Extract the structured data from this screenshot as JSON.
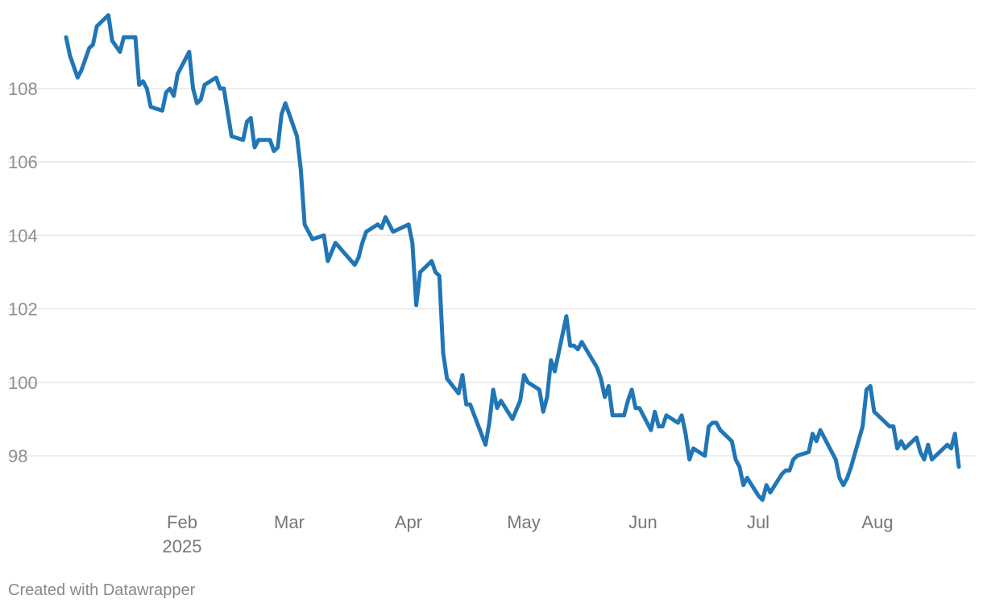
{
  "chart_data": {
    "type": "line",
    "title": "",
    "xlabel": "",
    "ylabel": "",
    "ylim": [
      96.8,
      110.4
    ],
    "y_ticks": [
      "108",
      "106",
      "104",
      "102",
      "100",
      "98"
    ],
    "x_ticks": [
      {
        "label": "Feb",
        "sub": "2025",
        "date": "2025-02-01"
      },
      {
        "label": "Mar",
        "sub": "",
        "date": "2025-03-01"
      },
      {
        "label": "Apr",
        "sub": "",
        "date": "2025-04-01"
      },
      {
        "label": "May",
        "sub": "",
        "date": "2025-05-01"
      },
      {
        "label": "Jun",
        "sub": "",
        "date": "2025-06-01"
      },
      {
        "label": "Jul",
        "sub": "",
        "date": "2025-07-01"
      },
      {
        "label": "Aug",
        "sub": "",
        "date": "2025-08-01"
      }
    ],
    "x_range": [
      "2025-01-13",
      "2025-08-22"
    ],
    "grid": true,
    "line_color": "#2176b5",
    "series": [
      {
        "points": [
          [
            "2025-01-13",
            109.4
          ],
          [
            "2025-01-14",
            108.9
          ],
          [
            "2025-01-16",
            108.3
          ],
          [
            "2025-01-17",
            108.5
          ],
          [
            "2025-01-19",
            109.1
          ],
          [
            "2025-01-20",
            109.2
          ],
          [
            "2025-01-21",
            109.7
          ],
          [
            "2025-01-24",
            110.0
          ],
          [
            "2025-01-25",
            109.3
          ],
          [
            "2025-01-27",
            109.0
          ],
          [
            "2025-01-28",
            109.4
          ],
          [
            "2025-01-31",
            109.4
          ],
          [
            "2025-02-01",
            108.1
          ],
          [
            "2025-02-02",
            108.2
          ],
          [
            "2025-02-03",
            108.0
          ],
          [
            "2025-02-04",
            107.5
          ],
          [
            "2025-02-07",
            107.4
          ],
          [
            "2025-02-08",
            107.9
          ],
          [
            "2025-02-09",
            108.0
          ],
          [
            "2025-02-10",
            107.8
          ],
          [
            "2025-02-11",
            108.4
          ],
          [
            "2025-02-14",
            109.0
          ],
          [
            "2025-02-15",
            108.0
          ],
          [
            "2025-02-16",
            107.6
          ],
          [
            "2025-02-17",
            107.7
          ],
          [
            "2025-02-18",
            108.1
          ],
          [
            "2025-02-21",
            108.3
          ],
          [
            "2025-02-22",
            108.0
          ],
          [
            "2025-02-23",
            108.0
          ],
          [
            "2025-02-25",
            106.7
          ],
          [
            "2025-02-28",
            106.6
          ],
          [
            "2025-03-01",
            107.1
          ],
          [
            "2025-03-02",
            107.2
          ],
          [
            "2025-03-03",
            106.4
          ],
          [
            "2025-03-04",
            106.6
          ],
          [
            "2025-03-07",
            106.6
          ],
          [
            "2025-03-08",
            106.3
          ],
          [
            "2025-03-09",
            106.4
          ],
          [
            "2025-03-10",
            107.3
          ],
          [
            "2025-03-11",
            107.6
          ],
          [
            "2025-03-14",
            106.7
          ],
          [
            "2025-03-15",
            105.8
          ],
          [
            "2025-03-16",
            104.3
          ],
          [
            "2025-03-18",
            103.9
          ],
          [
            "2025-03-21",
            104.0
          ],
          [
            "2025-03-22",
            103.3
          ],
          [
            "2025-03-24",
            103.8
          ],
          [
            "2025-03-29",
            103.2
          ],
          [
            "2025-03-30",
            103.4
          ],
          [
            "2025-03-31",
            103.8
          ],
          [
            "2025-04-01",
            104.1
          ],
          [
            "2025-04-04",
            104.3
          ],
          [
            "2025-04-05",
            104.2
          ],
          [
            "2025-04-06",
            104.5
          ],
          [
            "2025-04-08",
            104.1
          ],
          [
            "2025-04-12",
            104.3
          ],
          [
            "2025-04-13",
            103.8
          ],
          [
            "2025-04-14",
            102.1
          ],
          [
            "2025-04-15",
            103.0
          ],
          [
            "2025-04-18",
            103.3
          ],
          [
            "2025-04-19",
            103.0
          ],
          [
            "2025-04-20",
            102.9
          ],
          [
            "2025-04-21",
            100.8
          ],
          [
            "2025-04-22",
            100.1
          ],
          [
            "2025-04-25",
            99.7
          ],
          [
            "2025-04-26",
            100.2
          ],
          [
            "2025-04-27",
            99.4
          ],
          [
            "2025-04-28",
            99.4
          ],
          [
            "2025-05-02",
            98.3
          ],
          [
            "2025-05-03",
            98.9
          ],
          [
            "2025-05-04",
            99.8
          ],
          [
            "2025-05-05",
            99.3
          ],
          [
            "2025-05-06",
            99.5
          ],
          [
            "2025-05-09",
            99.0
          ],
          [
            "2025-05-11",
            99.5
          ],
          [
            "2025-05-12",
            100.2
          ],
          [
            "2025-05-13",
            100.0
          ],
          [
            "2025-05-16",
            99.8
          ],
          [
            "2025-05-17",
            99.2
          ],
          [
            "2025-05-18",
            99.6
          ],
          [
            "2025-05-19",
            100.6
          ],
          [
            "2025-05-20",
            100.3
          ],
          [
            "2025-05-23",
            101.8
          ],
          [
            "2025-05-24",
            101.0
          ],
          [
            "2025-05-25",
            101.0
          ],
          [
            "2025-05-26",
            100.9
          ],
          [
            "2025-05-27",
            101.1
          ],
          [
            "2025-05-31",
            100.4
          ],
          [
            "2025-06-01",
            100.1
          ],
          [
            "2025-06-02",
            99.6
          ],
          [
            "2025-06-03",
            99.9
          ],
          [
            "2025-06-04",
            99.1
          ],
          [
            "2025-06-07",
            99.1
          ],
          [
            "2025-06-08",
            99.5
          ],
          [
            "2025-06-09",
            99.8
          ],
          [
            "2025-06-10",
            99.3
          ],
          [
            "2025-06-11",
            99.3
          ],
          [
            "2025-06-14",
            98.7
          ],
          [
            "2025-06-15",
            99.2
          ],
          [
            "2025-06-16",
            98.8
          ],
          [
            "2025-06-17",
            98.8
          ],
          [
            "2025-06-18",
            99.1
          ],
          [
            "2025-06-21",
            98.9
          ],
          [
            "2025-06-22",
            99.1
          ],
          [
            "2025-06-23",
            98.6
          ],
          [
            "2025-06-24",
            97.9
          ],
          [
            "2025-06-25",
            98.2
          ],
          [
            "2025-06-28",
            98.0
          ],
          [
            "2025-06-29",
            98.8
          ],
          [
            "2025-06-30",
            98.9
          ],
          [
            "2025-07-01",
            98.9
          ],
          [
            "2025-07-02",
            98.7
          ],
          [
            "2025-07-05",
            98.4
          ],
          [
            "2025-07-06",
            97.9
          ],
          [
            "2025-07-07",
            97.7
          ],
          [
            "2025-07-08",
            97.2
          ],
          [
            "2025-07-09",
            97.4
          ],
          [
            "2025-07-12",
            96.9
          ],
          [
            "2025-07-13",
            96.8
          ],
          [
            "2025-07-14",
            97.2
          ],
          [
            "2025-07-15",
            97.0
          ],
          [
            "2025-07-18",
            97.5
          ],
          [
            "2025-07-19",
            97.6
          ],
          [
            "2025-07-20",
            97.6
          ],
          [
            "2025-07-21",
            97.9
          ],
          [
            "2025-07-22",
            98.0
          ],
          [
            "2025-07-25",
            98.1
          ],
          [
            "2025-07-26",
            98.6
          ],
          [
            "2025-07-27",
            98.4
          ],
          [
            "2025-07-28",
            98.7
          ],
          [
            "2025-08-01",
            97.9
          ],
          [
            "2025-08-02",
            97.4
          ],
          [
            "2025-08-03",
            97.2
          ],
          [
            "2025-08-04",
            97.4
          ],
          [
            "2025-08-05",
            97.7
          ],
          [
            "2025-08-08",
            98.8
          ],
          [
            "2025-08-09",
            99.8
          ],
          [
            "2025-08-10",
            99.9
          ],
          [
            "2025-08-11",
            99.2
          ],
          [
            "2025-08-12",
            99.1
          ],
          [
            "2025-08-15",
            98.8
          ],
          [
            "2025-08-16",
            98.8
          ],
          [
            "2025-08-17",
            98.2
          ],
          [
            "2025-08-18",
            98.4
          ],
          [
            "2025-08-19",
            98.2
          ],
          [
            "2025-08-22",
            98.5
          ],
          [
            "2025-08-23",
            98.1
          ],
          [
            "2025-08-24",
            97.9
          ],
          [
            "2025-08-25",
            98.3
          ],
          [
            "2025-08-26",
            97.9
          ],
          [
            "2025-08-29",
            98.2
          ],
          [
            "2025-08-30",
            98.3
          ],
          [
            "2025-08-31",
            98.2
          ],
          [
            "2025-09-01",
            98.6
          ],
          [
            "2025-09-02",
            97.7
          ]
        ]
      }
    ]
  },
  "footer": {
    "credit": "Created with Datawrapper"
  }
}
